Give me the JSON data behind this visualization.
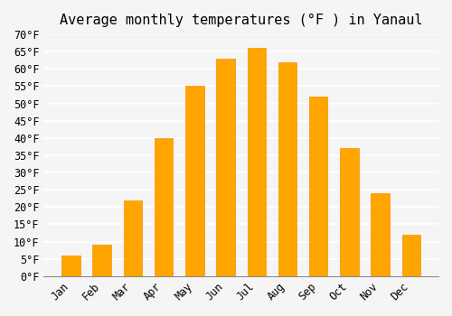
{
  "title": "Average monthly temperatures (°F ) in Yanaul",
  "months": [
    "Jan",
    "Feb",
    "Mar",
    "Apr",
    "May",
    "Jun",
    "Jul",
    "Aug",
    "Sep",
    "Oct",
    "Nov",
    "Dec"
  ],
  "values": [
    6,
    9,
    22,
    40,
    55,
    63,
    66,
    62,
    52,
    37,
    24,
    12
  ],
  "bar_color": "#FFA500",
  "bar_edge_color": "#FF8C00",
  "background_color": "#f5f5f5",
  "grid_color": "#ffffff",
  "ylim": [
    0,
    70
  ],
  "yticks": [
    0,
    5,
    10,
    15,
    20,
    25,
    30,
    35,
    40,
    45,
    50,
    55,
    60,
    65,
    70
  ],
  "title_fontsize": 11,
  "tick_fontsize": 8.5,
  "ylabel_suffix": "°F"
}
